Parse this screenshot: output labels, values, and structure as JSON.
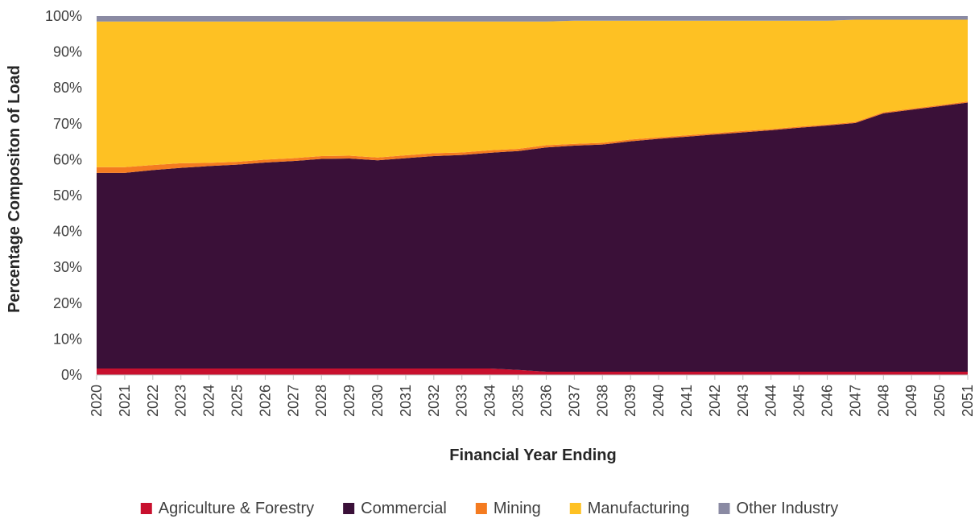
{
  "chart_data": {
    "type": "area",
    "stacked": true,
    "percent": true,
    "xlabel": "Financial Year Ending",
    "ylabel": "Percentage Compositon of Load",
    "ylim": [
      0,
      100
    ],
    "yticks": [
      "0%",
      "10%",
      "20%",
      "30%",
      "40%",
      "50%",
      "60%",
      "70%",
      "80%",
      "90%",
      "100%"
    ],
    "x": [
      "2020",
      "2021",
      "2022",
      "2023",
      "2024",
      "2025",
      "2026",
      "2027",
      "2028",
      "2029",
      "2030",
      "2031",
      "2032",
      "2033",
      "2034",
      "2035",
      "2036",
      "2037",
      "2038",
      "2039",
      "2040",
      "2041",
      "2042",
      "2043",
      "2044",
      "2045",
      "2046",
      "2047",
      "2048",
      "2049",
      "2050",
      "2051"
    ],
    "grid": false,
    "legend_position": "bottom",
    "series": [
      {
        "name": "Agriculture & Forestry",
        "color": "#C8102E",
        "values": [
          1.8,
          1.8,
          1.8,
          1.8,
          1.8,
          1.8,
          1.8,
          1.8,
          1.8,
          1.8,
          1.8,
          1.8,
          1.8,
          1.8,
          1.8,
          1.4,
          0.9,
          0.9,
          0.9,
          0.9,
          0.9,
          0.9,
          0.9,
          0.9,
          0.9,
          0.9,
          0.9,
          0.9,
          0.9,
          0.9,
          0.9,
          0.9
        ]
      },
      {
        "name": "Commercial",
        "color": "#3A1038",
        "values": [
          54.5,
          54.5,
          55.3,
          55.9,
          56.4,
          56.8,
          57.4,
          57.8,
          58.4,
          58.5,
          58.0,
          58.6,
          59.2,
          59.5,
          60.1,
          61.0,
          62.5,
          63.0,
          63.3,
          64.2,
          64.9,
          65.5,
          66.1,
          66.7,
          67.3,
          68.0,
          68.6,
          69.3,
          72.0,
          73.0,
          74.0,
          75.0
        ]
      },
      {
        "name": "Mining",
        "color": "#F47B20",
        "values": [
          1.6,
          1.6,
          1.4,
          1.3,
          0.9,
          0.8,
          0.8,
          0.8,
          0.8,
          0.8,
          0.8,
          0.8,
          0.8,
          0.7,
          0.7,
          0.6,
          0.6,
          0.5,
          0.5,
          0.5,
          0.4,
          0.4,
          0.4,
          0.4,
          0.3,
          0.3,
          0.3,
          0.3,
          0.3,
          0.3,
          0.3,
          0.3
        ]
      },
      {
        "name": "Manufacturing",
        "color": "#FEC123",
        "values": [
          40.6,
          40.6,
          40.0,
          39.5,
          39.4,
          39.1,
          38.5,
          38.1,
          37.5,
          37.4,
          37.9,
          37.3,
          36.7,
          36.5,
          35.9,
          35.5,
          34.5,
          34.3,
          34.0,
          33.1,
          32.5,
          31.9,
          31.3,
          30.7,
          30.2,
          29.5,
          28.9,
          28.5,
          25.8,
          24.8,
          23.8,
          22.8
        ]
      },
      {
        "name": "Other Industry",
        "color": "#8A8AA3",
        "values": [
          1.5,
          1.5,
          1.5,
          1.5,
          1.5,
          1.5,
          1.5,
          1.5,
          1.5,
          1.5,
          1.5,
          1.5,
          1.5,
          1.5,
          1.5,
          1.5,
          1.5,
          1.3,
          1.3,
          1.3,
          1.3,
          1.3,
          1.3,
          1.3,
          1.3,
          1.3,
          1.3,
          1.0,
          1.0,
          1.0,
          1.0,
          1.0
        ]
      }
    ]
  }
}
